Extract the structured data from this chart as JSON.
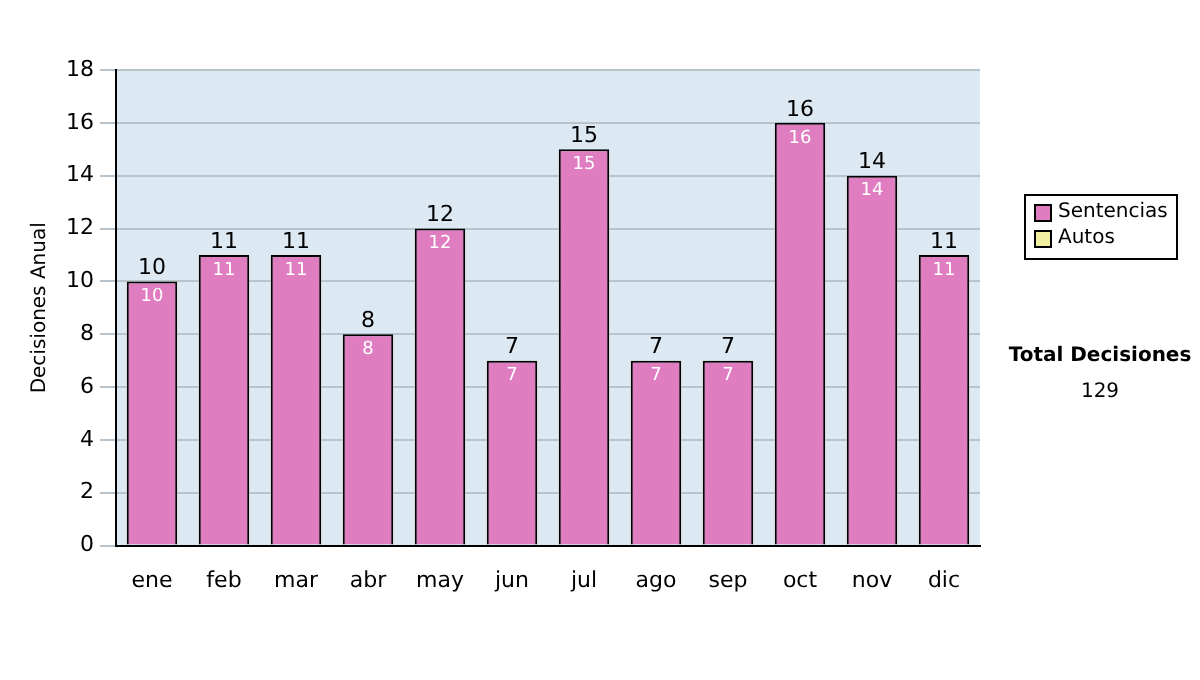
{
  "chart_data": {
    "type": "bar",
    "stacked": true,
    "ylabel": "Decisiones Anual",
    "categories": [
      "ene",
      "feb",
      "mar",
      "abr",
      "may",
      "jun",
      "jul",
      "ago",
      "sep",
      "oct",
      "nov",
      "dic"
    ],
    "series": [
      {
        "name": "Sentencias",
        "color": "#e07cc0",
        "values": [
          10,
          11,
          11,
          8,
          12,
          7,
          15,
          7,
          7,
          16,
          14,
          11
        ],
        "value_labels": [
          "10",
          "11",
          "11",
          "8",
          "12",
          "7",
          "15",
          "7",
          "7",
          "16",
          "14",
          "11"
        ]
      },
      {
        "name": "Autos",
        "color": "#f0f0a0",
        "values": [
          0,
          0,
          0,
          0,
          0,
          0,
          0,
          0,
          0,
          0,
          0,
          0
        ],
        "value_labels": [
          null,
          null,
          null,
          null,
          null,
          null,
          null,
          null,
          null,
          null,
          null,
          null
        ]
      }
    ],
    "totals": [
      "10",
      "11",
      "11",
      "8",
      "12",
      "7",
      "15",
      "7",
      "7",
      "16",
      "14",
      "11"
    ],
    "ylim": [
      0,
      18
    ],
    "yticks": [
      0,
      2,
      4,
      6,
      8,
      10,
      12,
      14,
      16,
      18
    ],
    "grid": "y",
    "legend": "right",
    "annotations": [
      "Total Decisiones",
      "129"
    ]
  }
}
